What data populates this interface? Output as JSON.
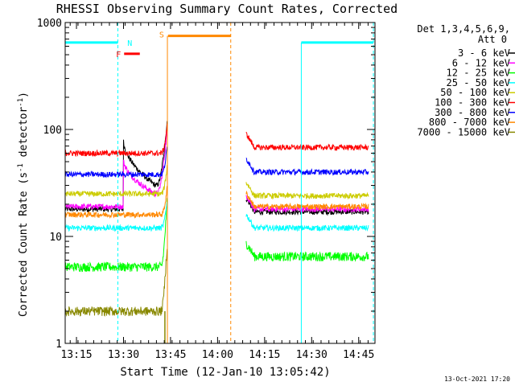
{
  "chart_data": {
    "type": "line",
    "title": "RHESSI Observing Summary Count Rates, Corrected",
    "xlabel": "Start Time (12-Jan-10 13:05:42)",
    "ylabel": "Corrected Count Rate (s-1 detector-1)",
    "ylabel_parts": {
      "main": "Corrected Count Rate (s",
      "exp1": "-1",
      "mid": " detector",
      "exp2": "-1",
      "end": ")"
    },
    "yscale": "log",
    "ylim": [
      1,
      1000
    ],
    "xlim": [
      5.7,
      104.5
    ],
    "x_units": "minutes after 13:05:42",
    "x_ticks": [
      {
        "label": "13:15",
        "t": 9.3
      },
      {
        "label": "13:30",
        "t": 24.3
      },
      {
        "label": "13:45",
        "t": 39.3
      },
      {
        "label": "14:00",
        "t": 54.3
      },
      {
        "label": "14:15",
        "t": 69.3
      },
      {
        "label": "14:30",
        "t": 84.3
      },
      {
        "label": "14:45",
        "t": 99.3
      }
    ],
    "y_ticks": [
      {
        "label": "1",
        "v": 1
      },
      {
        "label": "10",
        "v": 10
      },
      {
        "label": "100",
        "v": 100
      },
      {
        "label": "1000",
        "v": 1000
      }
    ],
    "legend_header": [
      "Det 1,3,4,5,6,9,",
      "Att 0"
    ],
    "footer_date": "13-Oct-2021 17:20",
    "series": [
      {
        "name": "3 - 6 keV",
        "color": "#000000",
        "pre": 18,
        "post": 17,
        "flare": {
          "peak": 85,
          "end": 30
        }
      },
      {
        "name": "6 - 12 keV",
        "color": "#ff00ff",
        "pre": 19,
        "post": 18,
        "flare": {
          "peak": 55,
          "end": 25
        }
      },
      {
        "name": "12 - 25 keV",
        "color": "#00ff00",
        "pre": 5.2,
        "post": 6.5
      },
      {
        "name": "25 - 50 keV",
        "color": "#00ffff",
        "pre": 12,
        "post": 12
      },
      {
        "name": "50 - 100 keV",
        "color": "#cccc00",
        "pre": 25,
        "post": 24
      },
      {
        "name": "100 - 300 keV",
        "color": "#ff0000",
        "pre": 60,
        "post": 68
      },
      {
        "name": "300 - 800 keV",
        "color": "#0000ff",
        "pre": 38,
        "post": 40
      },
      {
        "name": "800 - 7000 keV",
        "color": "#ff8800",
        "pre": 16,
        "post": 19
      },
      {
        "name": "7000 - 15000 keV",
        "color": "#888800",
        "pre": 2.0,
        "post": null
      }
    ],
    "annotations": [
      {
        "label": "N",
        "color": "#00ffff",
        "t": 24.0,
        "kind": "night"
      },
      {
        "label": "F",
        "color": "#ff0000",
        "t": 24.5,
        "kind": "flag-bar"
      },
      {
        "label": "S",
        "color": "#ff8800",
        "t": 38.5,
        "kind": "saa"
      }
    ],
    "eclipse_intervals": [
      {
        "start": 5.7,
        "end": 22.5,
        "color": "#00ffff"
      },
      {
        "start": 81.0,
        "end": 104.0,
        "color": "#00ffff"
      }
    ],
    "saa_interval": {
      "start": 38.5,
      "end": 58.5,
      "color": "#ff8800"
    },
    "flag_interval": {
      "start": 24.5,
      "end": 29.5,
      "color": "#ff0000"
    }
  }
}
